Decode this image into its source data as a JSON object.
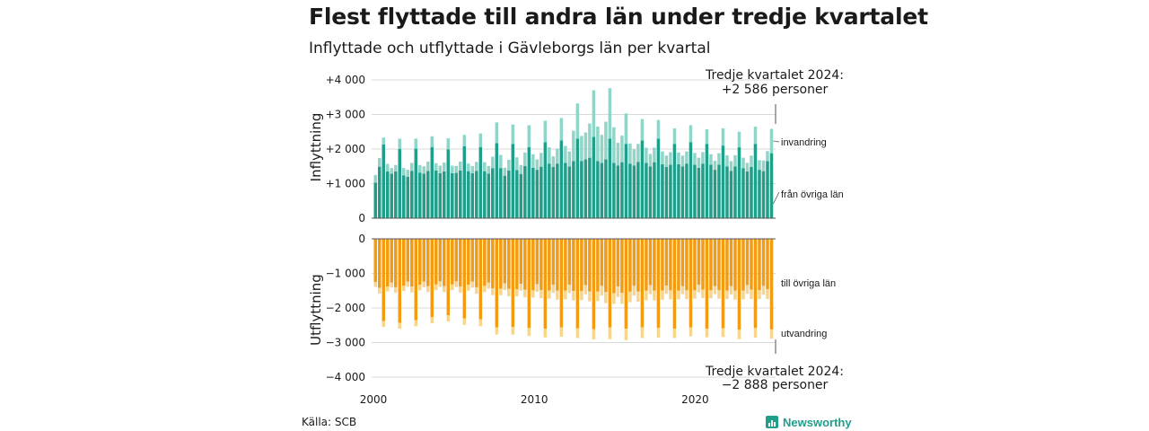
{
  "title": "Flest flyttade till andra län under tredje kvartalet",
  "subtitle": "Inflyttade och utflyttade i Gävleborgs län per kvartal",
  "source": "Källa: SCB",
  "logo_text": "Newsworthy",
  "colors": {
    "in_domestic": "#1f9e89",
    "in_immigration": "#8fd6c8",
    "out_domestic": "#f39c12",
    "out_emigration": "#f8d58c"
  },
  "chart_data": [
    {
      "type": "bar",
      "stacked": true,
      "ylabel": "Inflyttning",
      "ylim": [
        0,
        4000
      ],
      "yticks": [
        0,
        1000,
        2000,
        3000,
        4000
      ],
      "ytick_labels": [
        "0",
        "+1 000",
        "+2 000",
        "+3 000",
        "+4 000"
      ],
      "xlim": [
        2000,
        2025
      ],
      "xticks": [
        2000,
        2010,
        2020
      ],
      "xtick_labels": [
        "2000",
        "2010",
        "2020"
      ],
      "x_start": "2000 Q1",
      "x_end": "2024 Q3",
      "grid": true,
      "series": [
        {
          "name": "från övriga län",
          "values": [
            1030,
            1490,
            2130,
            1350,
            1290,
            1350,
            2000,
            1240,
            1200,
            1370,
            2010,
            1320,
            1290,
            1370,
            2060,
            1380,
            1300,
            1350,
            1990,
            1300,
            1310,
            1380,
            2080,
            1360,
            1300,
            1370,
            2060,
            1360,
            1290,
            1450,
            2170,
            1450,
            1230,
            1380,
            2150,
            1390,
            1280,
            1510,
            2060,
            1460,
            1400,
            1490,
            2200,
            1580,
            1480,
            1580,
            2250,
            1600,
            1500,
            1650,
            2300,
            1650,
            1700,
            1750,
            2350,
            1650,
            1600,
            1700,
            2300,
            1600,
            1520,
            1620,
            2150,
            1580,
            1520,
            1630,
            2250,
            1600,
            1500,
            1620,
            2300,
            1560,
            1480,
            1550,
            2150,
            1560,
            1500,
            1580,
            2200,
            1550,
            1460,
            1580,
            2150,
            1550,
            1400,
            1550,
            2100,
            1500,
            1370,
            1500,
            2050,
            1450,
            1350,
            1480,
            2150,
            1400,
            1360,
            1650,
            1880
          ]
        },
        {
          "name": "invandring",
          "values": [
            220,
            250,
            200,
            220,
            160,
            190,
            300,
            210,
            200,
            230,
            290,
            220,
            210,
            270,
            310,
            210,
            220,
            260,
            320,
            220,
            200,
            260,
            330,
            220,
            210,
            260,
            390,
            260,
            220,
            330,
            600,
            380,
            230,
            310,
            560,
            370,
            260,
            390,
            630,
            390,
            300,
            400,
            620,
            470,
            310,
            430,
            650,
            490,
            430,
            880,
            1020,
            730,
            780,
            990,
            1350,
            1000,
            810,
            1090,
            1460,
            1030,
            660,
            770,
            880,
            580,
            470,
            520,
            620,
            440,
            360,
            420,
            540,
            370,
            330,
            360,
            450,
            340,
            310,
            350,
            490,
            340,
            290,
            330,
            420,
            300,
            260,
            330,
            500,
            320,
            280,
            320,
            450,
            300,
            250,
            330,
            500,
            280,
            310,
            290,
            706
          ]
        }
      ]
    },
    {
      "type": "bar",
      "stacked": true,
      "ylabel": "Utflyttning",
      "ylim": [
        -4000,
        0
      ],
      "yticks": [
        0,
        -1000,
        -2000,
        -3000,
        -4000
      ],
      "ytick_labels": [
        "0",
        "−1 000",
        "−2 000",
        "−3 000",
        "−4 000"
      ],
      "xlim": [
        2000,
        2025
      ],
      "xticks": [
        2000,
        2010,
        2020
      ],
      "xtick_labels": [
        "2000",
        "2010",
        "2020"
      ],
      "x_start": "2000 Q1",
      "x_end": "2024 Q3",
      "grid": true,
      "series": [
        {
          "name": "till övriga län",
          "values": [
            -1250,
            -1420,
            -2380,
            -1380,
            -1260,
            -1400,
            -2430,
            -1360,
            -1240,
            -1380,
            -2350,
            -1330,
            -1240,
            -1370,
            -2260,
            -1320,
            -1230,
            -1370,
            -2210,
            -1320,
            -1230,
            -1380,
            -2300,
            -1330,
            -1240,
            -1400,
            -2330,
            -1360,
            -1260,
            -1430,
            -2560,
            -1440,
            -1290,
            -1450,
            -2550,
            -1460,
            -1300,
            -1470,
            -2580,
            -1490,
            -1310,
            -1480,
            -2600,
            -1500,
            -1330,
            -1500,
            -2560,
            -1500,
            -1330,
            -1510,
            -2590,
            -1510,
            -1340,
            -1520,
            -2610,
            -1520,
            -1360,
            -1540,
            -2560,
            -1570,
            -1380,
            -1560,
            -2600,
            -1530,
            -1360,
            -1520,
            -2560,
            -1500,
            -1340,
            -1500,
            -2570,
            -1500,
            -1350,
            -1490,
            -2600,
            -1500,
            -1370,
            -1490,
            -2560,
            -1490,
            -1330,
            -1470,
            -2600,
            -1490,
            -1370,
            -1480,
            -2590,
            -1500,
            -1370,
            -1500,
            -2630,
            -1500,
            -1340,
            -1470,
            -2580,
            -1480,
            -1360,
            -1460,
            -2620
          ]
        },
        {
          "name": "utvandring",
          "values": [
            -140,
            -160,
            -170,
            -140,
            -150,
            -160,
            -170,
            -150,
            -150,
            -170,
            -180,
            -160,
            -160,
            -170,
            -180,
            -160,
            -160,
            -170,
            -180,
            -160,
            -160,
            -180,
            -190,
            -170,
            -170,
            -190,
            -200,
            -180,
            -180,
            -200,
            -210,
            -190,
            -190,
            -210,
            -220,
            -200,
            -200,
            -220,
            -230,
            -210,
            -220,
            -240,
            -250,
            -230,
            -230,
            -260,
            -270,
            -250,
            -240,
            -270,
            -280,
            -260,
            -260,
            -290,
            -300,
            -280,
            -280,
            -320,
            -340,
            -310,
            -300,
            -320,
            -330,
            -300,
            -280,
            -300,
            -310,
            -280,
            -260,
            -280,
            -290,
            -260,
            -240,
            -260,
            -270,
            -250,
            -230,
            -250,
            -260,
            -240,
            -220,
            -240,
            -250,
            -230,
            -230,
            -250,
            -250,
            -240,
            -240,
            -260,
            -270,
            -250,
            -250,
            -270,
            -280,
            -260,
            -260,
            -280,
            -268
          ]
        }
      ]
    }
  ],
  "annotations": {
    "top_line1": "Tredje kvartalet 2024:",
    "top_line2": "+2 586 personer",
    "bottom_line1": "Tredje kvartalet 2024:",
    "bottom_line2": "−2 888 personer"
  }
}
